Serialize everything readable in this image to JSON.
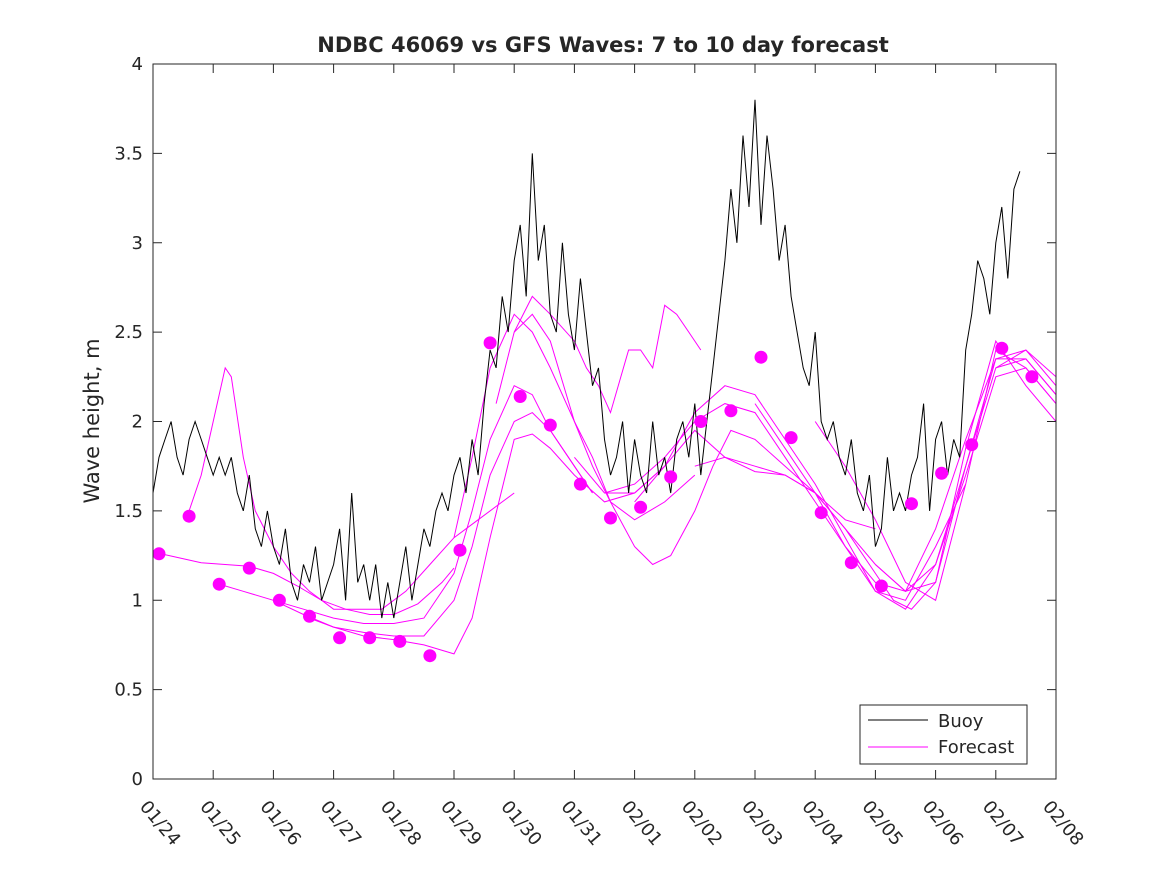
{
  "chart_data": {
    "type": "line",
    "title": "NDBC 46069 vs GFS Waves: 7 to 10 day forecast",
    "xlabel": "",
    "ylabel": "Wave height, m",
    "xlim": [
      0,
      15
    ],
    "ylim": [
      0,
      4
    ],
    "x_ticks": [
      0,
      1,
      2,
      3,
      4,
      5,
      6,
      7,
      8,
      9,
      10,
      11,
      12,
      13,
      14,
      15
    ],
    "x_tick_labels": [
      "01/24",
      "01/25",
      "01/26",
      "01/27",
      "01/28",
      "01/29",
      "01/30",
      "01/31",
      "02/01",
      "02/02",
      "02/03",
      "02/04",
      "02/05",
      "02/06",
      "02/07",
      "02/08"
    ],
    "y_ticks": [
      0,
      0.5,
      1,
      1.5,
      2,
      2.5,
      3,
      3.5,
      4
    ],
    "y_tick_labels": [
      "0",
      "0.5",
      "1",
      "1.5",
      "2",
      "2.5",
      "3",
      "3.5",
      "4"
    ],
    "legend": {
      "position": "bottom-right",
      "entries": [
        "Buoy",
        "Forecast"
      ]
    },
    "colors": {
      "buoy": "#000000",
      "forecast": "#ff00ff"
    },
    "buoy": {
      "name": "Buoy",
      "x": [
        0,
        0.1,
        0.2,
        0.3,
        0.4,
        0.5,
        0.6,
        0.7,
        0.8,
        0.9,
        1.0,
        1.1,
        1.2,
        1.3,
        1.4,
        1.5,
        1.6,
        1.7,
        1.8,
        1.9,
        2.0,
        2.1,
        2.2,
        2.3,
        2.4,
        2.5,
        2.6,
        2.7,
        2.8,
        2.9,
        3.0,
        3.1,
        3.2,
        3.3,
        3.4,
        3.5,
        3.6,
        3.7,
        3.8,
        3.9,
        4.0,
        4.1,
        4.2,
        4.3,
        4.4,
        4.5,
        4.6,
        4.7,
        4.8,
        4.9,
        5.0,
        5.1,
        5.2,
        5.3,
        5.4,
        5.5,
        5.6,
        5.7,
        5.8,
        5.9,
        6.0,
        6.1,
        6.2,
        6.3,
        6.4,
        6.5,
        6.6,
        6.7,
        6.8,
        6.9,
        7.0,
        7.1,
        7.2,
        7.3,
        7.4,
        7.5,
        7.6,
        7.7,
        7.8,
        7.9,
        8.0,
        8.1,
        8.2,
        8.3,
        8.4,
        8.5,
        8.6,
        8.7,
        8.8,
        8.9,
        9.0,
        9.1,
        9.2,
        9.3,
        9.4,
        9.5,
        9.6,
        9.7,
        9.8,
        9.9,
        10.0,
        10.1,
        10.2,
        10.3,
        10.4,
        10.5,
        10.6,
        10.7,
        10.8,
        10.9,
        11.0,
        11.1,
        11.2,
        11.3,
        11.4,
        11.5,
        11.6,
        11.7,
        11.8,
        11.9,
        12.0,
        12.1,
        12.2,
        12.3,
        12.4,
        12.5,
        12.6,
        12.7,
        12.8,
        12.9,
        13.0,
        13.1,
        13.2,
        13.3,
        13.4,
        13.5,
        13.6,
        13.7,
        13.8,
        13.9,
        14.0,
        14.1,
        14.2,
        14.3,
        14.4
      ],
      "values": [
        1.6,
        1.8,
        1.9,
        2.0,
        1.8,
        1.7,
        1.9,
        2.0,
        1.9,
        1.8,
        1.7,
        1.8,
        1.7,
        1.8,
        1.6,
        1.5,
        1.7,
        1.4,
        1.3,
        1.5,
        1.3,
        1.2,
        1.4,
        1.1,
        1.0,
        1.2,
        1.1,
        1.3,
        1.0,
        1.1,
        1.2,
        1.4,
        1.0,
        1.6,
        1.1,
        1.2,
        1.0,
        1.2,
        0.9,
        1.1,
        0.9,
        1.1,
        1.3,
        1.0,
        1.2,
        1.4,
        1.3,
        1.5,
        1.6,
        1.5,
        1.7,
        1.8,
        1.6,
        1.9,
        1.7,
        2.1,
        2.4,
        2.3,
        2.7,
        2.5,
        2.9,
        3.1,
        2.7,
        3.5,
        2.9,
        3.1,
        2.6,
        2.5,
        3.0,
        2.6,
        2.4,
        2.8,
        2.5,
        2.2,
        2.3,
        1.9,
        1.7,
        1.8,
        2.0,
        1.6,
        1.9,
        1.7,
        1.6,
        2.0,
        1.7,
        1.8,
        1.6,
        1.9,
        2.0,
        1.8,
        2.1,
        1.7,
        2.0,
        2.3,
        2.6,
        2.9,
        3.3,
        3.0,
        3.6,
        3.2,
        3.8,
        3.1,
        3.6,
        3.3,
        2.9,
        3.1,
        2.7,
        2.5,
        2.3,
        2.2,
        2.5,
        2.0,
        1.9,
        2.0,
        1.8,
        1.7,
        1.9,
        1.6,
        1.5,
        1.7,
        1.3,
        1.4,
        1.8,
        1.5,
        1.6,
        1.5,
        1.7,
        1.8,
        2.1,
        1.5,
        1.9,
        2.0,
        1.7,
        1.9,
        1.8,
        2.4,
        2.6,
        2.9,
        2.8,
        2.6,
        3.0,
        3.2,
        2.8,
        3.3,
        3.4
      ]
    },
    "forecast_lines": [
      {
        "x": [
          0.6,
          0.8,
          1.0,
          1.2,
          1.3,
          1.5,
          1.7,
          2.0,
          2.3,
          2.6,
          3.0,
          3.4,
          3.8,
          4.2,
          4.6,
          5.0,
          5.4,
          5.8,
          6.0
        ],
        "values": [
          1.5,
          1.7,
          2.0,
          2.3,
          2.25,
          1.8,
          1.5,
          1.3,
          1.15,
          1.05,
          0.95,
          0.95,
          0.95,
          1.05,
          1.2,
          1.35,
          1.45,
          1.55,
          1.6
        ]
      },
      {
        "x": [
          0,
          0.4,
          0.8,
          1.2,
          1.6,
          2.0,
          2.4,
          2.8,
          3.2,
          3.6,
          4.0,
          4.4,
          4.8,
          5.0
        ],
        "values": [
          1.27,
          1.24,
          1.21,
          1.2,
          1.19,
          1.15,
          1.08,
          1.0,
          0.95,
          0.92,
          0.92,
          0.98,
          1.1,
          1.18
        ]
      },
      {
        "x": [
          1.0,
          1.5,
          2.0,
          2.5,
          3.0,
          3.5,
          4.0,
          4.5,
          5.0,
          5.3,
          5.6,
          6.0,
          6.3,
          6.6,
          7.0,
          7.3
        ],
        "values": [
          1.1,
          1.05,
          1.0,
          0.95,
          0.9,
          0.87,
          0.87,
          0.9,
          1.15,
          1.5,
          1.9,
          2.2,
          2.15,
          1.95,
          1.75,
          1.6
        ]
      },
      {
        "x": [
          2.0,
          2.5,
          3.0,
          3.5,
          4.0,
          4.5,
          5.0,
          5.3,
          5.6,
          6.0,
          6.3,
          6.6,
          7.0,
          7.3
        ],
        "values": [
          1.0,
          0.92,
          0.85,
          0.82,
          0.8,
          0.8,
          1.0,
          1.3,
          1.7,
          2.0,
          2.05,
          1.95,
          1.75,
          1.6
        ]
      },
      {
        "x": [
          2.6,
          3.0,
          3.5,
          4.0,
          4.5,
          5.0,
          5.3,
          5.6,
          6.0,
          6.3,
          6.6,
          7.0,
          7.5,
          8.0,
          8.5
        ],
        "values": [
          0.9,
          0.85,
          0.8,
          0.78,
          0.75,
          0.7,
          0.9,
          1.35,
          1.9,
          1.93,
          1.85,
          1.7,
          1.55,
          1.6,
          1.75
        ]
      },
      {
        "x": [
          5.0,
          5.3,
          5.6,
          6.0,
          6.3,
          6.6,
          7.0,
          7.3,
          7.6,
          8.0,
          8.5,
          9.0
        ],
        "values": [
          1.35,
          1.8,
          2.3,
          2.6,
          2.5,
          2.3,
          2.0,
          1.75,
          1.55,
          1.45,
          1.55,
          1.7
        ]
      },
      {
        "x": [
          5.7,
          6.0,
          6.3,
          6.6,
          7.0,
          7.3,
          7.6,
          8.0,
          8.3,
          8.6,
          9.0,
          9.3,
          9.6,
          10.0,
          10.5,
          11.0,
          11.5,
          12.0
        ],
        "values": [
          2.1,
          2.5,
          2.6,
          2.45,
          2.0,
          1.8,
          1.55,
          1.3,
          1.2,
          1.25,
          1.5,
          1.75,
          1.95,
          1.9,
          1.75,
          1.6,
          1.45,
          1.4
        ]
      },
      {
        "x": [
          6.0,
          6.3,
          6.6,
          7.0,
          7.2,
          7.4,
          7.6,
          7.9,
          8.1,
          8.3,
          8.5,
          8.7,
          8.9,
          9.1
        ],
        "values": [
          2.5,
          2.7,
          2.6,
          2.45,
          2.3,
          2.2,
          2.05,
          2.4,
          2.4,
          2.3,
          2.65,
          2.6,
          2.5,
          2.4
        ]
      },
      {
        "x": [
          7.0,
          7.5,
          8.0,
          8.5,
          9.0,
          9.5,
          10.0,
          10.5,
          11.0,
          11.5,
          12.0,
          12.5,
          13.0,
          13.5
        ],
        "values": [
          1.8,
          1.6,
          1.6,
          1.75,
          2.05,
          2.2,
          2.15,
          1.9,
          1.65,
          1.35,
          1.05,
          1.0,
          1.3,
          1.65
        ]
      },
      {
        "x": [
          7.5,
          8.0,
          8.5,
          9.0,
          9.5,
          10.0,
          10.5,
          11.0,
          11.5,
          12.0,
          12.5,
          13.0,
          13.5,
          14.0,
          14.5,
          15.0
        ],
        "values": [
          1.6,
          1.65,
          1.8,
          2.0,
          2.1,
          2.05,
          1.8,
          1.55,
          1.3,
          1.1,
          1.05,
          1.4,
          1.9,
          2.35,
          2.35,
          2.15
        ]
      },
      {
        "x": [
          8.0,
          8.5,
          9.0,
          9.5,
          10.0,
          10.5,
          11.0,
          11.5,
          12.0,
          12.5,
          13.0,
          13.5,
          14.0,
          14.5,
          15.0
        ],
        "values": [
          1.55,
          1.75,
          1.95,
          1.8,
          1.72,
          1.7,
          1.6,
          1.3,
          1.05,
          0.95,
          1.2,
          1.7,
          2.25,
          2.3,
          2.1
        ]
      },
      {
        "x": [
          9.0,
          9.5,
          10.0,
          10.5,
          11.0,
          11.5,
          12.0,
          12.3,
          12.6,
          13.0,
          13.5,
          14.0,
          14.5,
          15.0
        ],
        "values": [
          1.75,
          1.8,
          1.75,
          1.7,
          1.6,
          1.4,
          1.15,
          1.0,
          0.95,
          1.1,
          1.75,
          2.3,
          2.4,
          2.2
        ]
      },
      {
        "x": [
          10.0,
          10.5,
          11.0,
          11.5,
          12.0,
          12.5,
          13.0,
          13.5,
          14.0,
          14.5,
          15.0
        ],
        "values": [
          2.1,
          1.85,
          1.6,
          1.4,
          1.2,
          1.05,
          1.2,
          1.75,
          2.35,
          2.4,
          2.25
        ]
      },
      {
        "x": [
          11.0,
          11.5,
          12.0,
          12.5,
          13.0,
          13.5,
          14.0,
          14.5,
          15.0
        ],
        "values": [
          2.0,
          1.75,
          1.45,
          1.1,
          1.0,
          1.65,
          2.4,
          2.3,
          2.1
        ]
      },
      {
        "x": [
          12.0,
          12.5,
          13.0,
          13.5,
          14.0,
          14.5,
          15.0
        ],
        "values": [
          1.2,
          1.05,
          1.1,
          1.85,
          2.45,
          2.2,
          2.0
        ]
      },
      {
        "x": [
          14.0,
          14.5,
          15.0
        ],
        "values": [
          2.3,
          2.35,
          2.15
        ]
      }
    ],
    "forecast_points": {
      "x": [
        0.1,
        0.6,
        1.1,
        1.6,
        2.1,
        2.6,
        3.1,
        3.6,
        4.1,
        4.6,
        5.1,
        5.6,
        6.1,
        6.6,
        7.1,
        7.6,
        8.1,
        8.6,
        9.1,
        9.6,
        10.1,
        10.6,
        11.1,
        11.6,
        12.1,
        12.6,
        13.1,
        13.6,
        14.1,
        14.6
      ],
      "values": [
        1.26,
        1.47,
        1.09,
        1.18,
        1.0,
        0.91,
        0.79,
        0.79,
        0.77,
        0.69,
        1.28,
        2.44,
        2.14,
        1.98,
        1.65,
        1.46,
        1.52,
        1.69,
        2.0,
        2.06,
        2.36,
        1.91,
        1.49,
        1.21,
        1.08,
        1.54,
        1.71,
        1.87,
        2.41,
        2.25
      ]
    }
  }
}
